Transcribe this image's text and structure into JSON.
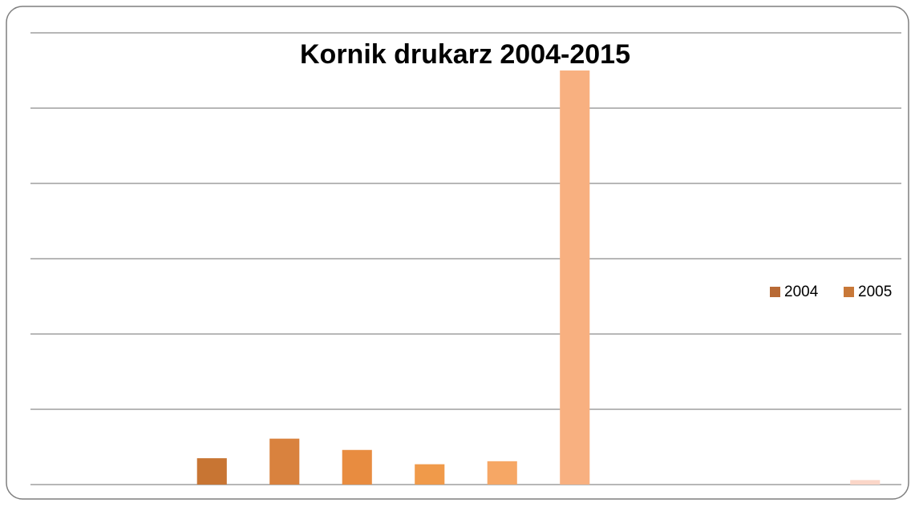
{
  "chart_data": {
    "type": "bar",
    "title": "Kornik drukarz 2004-2015",
    "categories": [
      null,
      null,
      null,
      null,
      null,
      null,
      null,
      null,
      null,
      null,
      null,
      null
    ],
    "values": [
      0,
      0,
      0.35,
      0.61,
      0.46,
      0.27,
      0.31,
      5.5,
      0,
      0,
      0,
      0.06
    ],
    "colors": [
      "#b86a35",
      "#c87838",
      "#c87533",
      "#d9823e",
      "#e88c40",
      "#f09a4a",
      "#f6a765",
      "#f8b080",
      "#f9bb92",
      "#fac3a2",
      "#fbcdb6",
      "#fbd6c8"
    ],
    "legend": [
      {
        "name": "2004",
        "color": "#b86a35"
      },
      {
        "name": "2005",
        "color": "#c87838"
      }
    ],
    "ylim": [
      0,
      6
    ],
    "yticks": [
      0,
      1,
      2,
      3,
      4,
      5,
      6
    ],
    "grid": true
  }
}
